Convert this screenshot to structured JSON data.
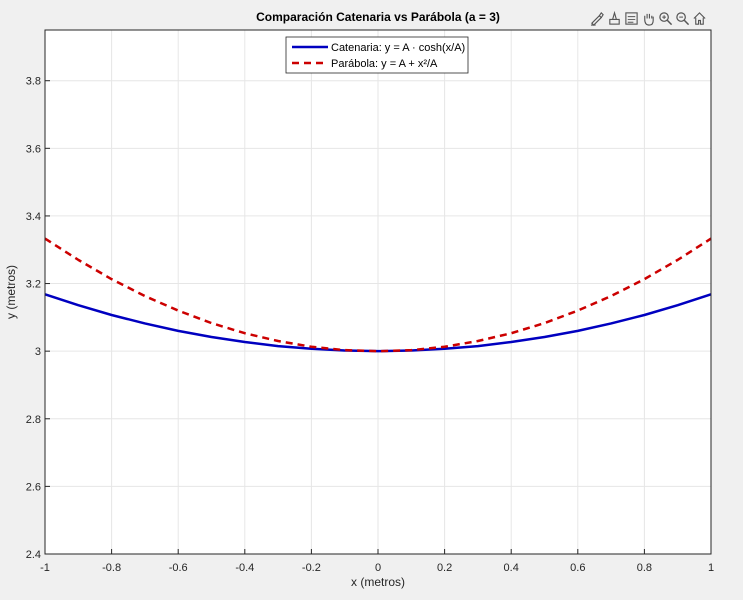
{
  "toolbar": {
    "icons": [
      "brush-icon",
      "data-tips-icon",
      "export-icon",
      "pan-icon",
      "zoom-in-icon",
      "zoom-out-icon",
      "home-icon"
    ]
  },
  "chart_data": {
    "type": "line",
    "title": "Comparación Catenaria vs Parábola (a = 3)",
    "xlabel": "x (metros)",
    "ylabel": "y (metros)",
    "xlim": [
      -1,
      1
    ],
    "ylim": [
      2.4,
      3.95
    ],
    "grid": true,
    "legend_position": "top-center",
    "xticks": [
      -1,
      -0.8,
      -0.6,
      -0.4,
      -0.2,
      0,
      0.2,
      0.4,
      0.6,
      0.8,
      1
    ],
    "xtick_labels": [
      "-1",
      "-0.8",
      "-0.6",
      "-0.4",
      "-0.2",
      "0",
      "0.2",
      "0.4",
      "0.6",
      "0.8",
      "1"
    ],
    "yticks": [
      2.4,
      2.6,
      2.8,
      3.0,
      3.2,
      3.4,
      3.6,
      3.8
    ],
    "ytick_labels": [
      "2.4",
      "2.6",
      "2.8",
      "3",
      "3.2",
      "3.4",
      "3.6",
      "3.8"
    ],
    "x": [
      -1,
      -0.9,
      -0.8,
      -0.7,
      -0.6,
      -0.5,
      -0.4,
      -0.3,
      -0.2,
      -0.1,
      0,
      0.1,
      0.2,
      0.3,
      0.4,
      0.5,
      0.6,
      0.7,
      0.8,
      0.9,
      1
    ],
    "series": [
      {
        "name": "Catenaria",
        "legend_text": "Catenaria: y = A · cosh(x/A)",
        "color": "#0000c0",
        "line_style": "solid",
        "values": [
          3.168,
          3.136,
          3.107,
          3.082,
          3.06,
          3.042,
          3.027,
          3.015,
          3.007,
          3.002,
          3.0,
          3.002,
          3.007,
          3.015,
          3.027,
          3.042,
          3.06,
          3.082,
          3.107,
          3.136,
          3.168
        ]
      },
      {
        "name": "Parábola",
        "legend_text": "Parábola: y = A + x²/A",
        "color": "#cc0000",
        "line_style": "dashed",
        "values": [
          3.333,
          3.27,
          3.213,
          3.163,
          3.12,
          3.083,
          3.053,
          3.03,
          3.013,
          3.003,
          3.0,
          3.003,
          3.013,
          3.03,
          3.053,
          3.083,
          3.12,
          3.163,
          3.213,
          3.27,
          3.333
        ]
      }
    ]
  }
}
